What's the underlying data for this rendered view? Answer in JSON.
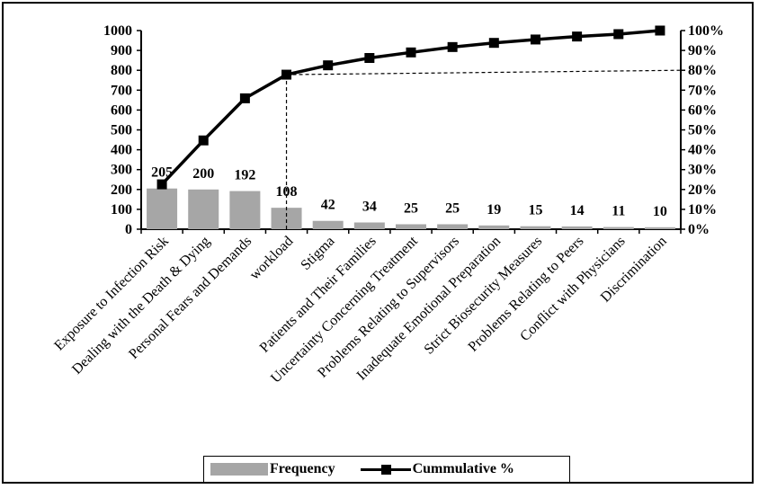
{
  "chart_data": {
    "type": "bar",
    "categories": [
      "Exposure to Infection Risk",
      "Dealing with the Death & Dying",
      "Personal Fears and Demands",
      "workload",
      "Stigma",
      "Patients and Their Families",
      "Uncertainty Concerning Treatment",
      "Problems Relating to Supervisors",
      "Inadequate Emotional Preparation",
      "Strict Biosecurity Measures",
      "Problems Relating to Peers",
      "Conflict with Physicians",
      "Discrimination"
    ],
    "series": [
      {
        "name": "Frequency",
        "type": "bar",
        "axis": "left",
        "color": "#a6a6a6",
        "values": [
          205,
          200,
          192,
          108,
          42,
          34,
          25,
          25,
          19,
          15,
          14,
          11,
          10
        ]
      },
      {
        "name": "Cummulative %",
        "type": "line",
        "axis": "right",
        "color": "#000000",
        "marker": "square",
        "values": [
          22.6,
          44.7,
          65.9,
          77.8,
          82.5,
          86.2,
          89.0,
          91.7,
          93.8,
          95.5,
          97.0,
          98.2,
          100.0
        ]
      }
    ],
    "data_labels": [
      "205",
      "200",
      "192",
      "108",
      "42",
      "34",
      "25",
      "25",
      "19",
      "15",
      "14",
      "11",
      "10"
    ],
    "y_left": {
      "ylim": [
        0,
        1000
      ],
      "ticks": [
        "0",
        "100",
        "200",
        "300",
        "400",
        "500",
        "600",
        "700",
        "800",
        "900",
        "1000"
      ]
    },
    "y_right": {
      "ylim": [
        0,
        100
      ],
      "ticks": [
        "0%",
        "10%",
        "20%",
        "30%",
        "40%",
        "50%",
        "60%",
        "70%",
        "80%",
        "90%",
        "100%"
      ]
    },
    "reference_line": {
      "style": "dashed",
      "cumulative_percent": 80,
      "at_category": "workload"
    },
    "grid": false,
    "legend_position": "bottom"
  }
}
